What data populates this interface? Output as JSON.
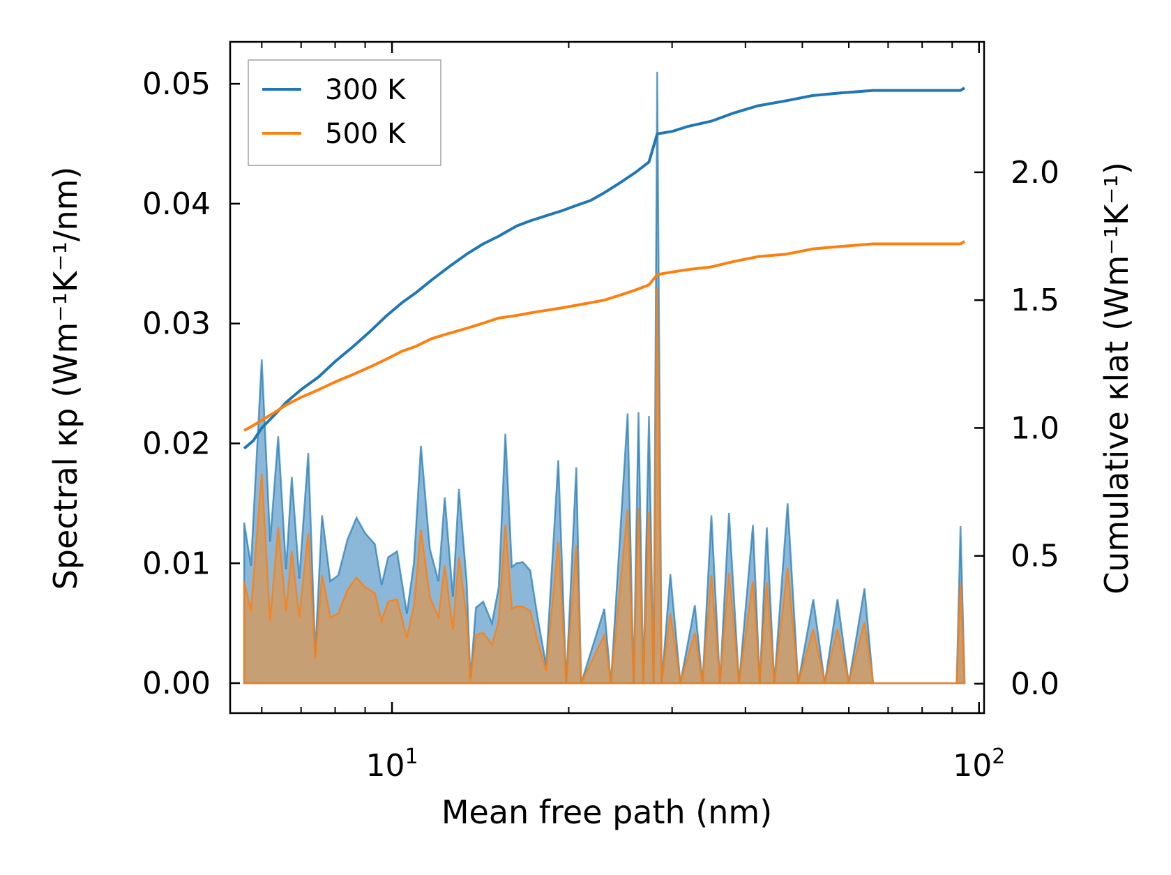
{
  "chart_data": {
    "type": "line",
    "x_scale": "log",
    "xlabel": "Mean free path (nm)",
    "ylabel_left": "Spectral κp (Wm⁻¹K⁻¹/nm)",
    "ylabel_right": "Cumulative κlat (Wm⁻¹K⁻¹)",
    "xlim": [
      5.3,
      102
    ],
    "ylim_left": [
      -0.0025,
      0.0535
    ],
    "ylim_right": [
      -0.115,
      2.51
    ],
    "x_ticks": [
      {
        "value": 10,
        "mantissa": "10",
        "exp": "1"
      },
      {
        "value": 100,
        "mantissa": "10",
        "exp": "2"
      }
    ],
    "y_ticks_left": [
      "0.00",
      "0.01",
      "0.02",
      "0.03",
      "0.04",
      "0.05"
    ],
    "y_ticks_right": [
      "0.0",
      "0.5",
      "1.0",
      "1.5",
      "2.0"
    ],
    "legend": {
      "position": "top-left",
      "entries": [
        "300 K",
        "500 K"
      ]
    },
    "colors": {
      "300 K": "#1f77b4",
      "500 K": "#ff7f0e",
      "fill_300": "#7eb0d5",
      "fill_500": "#d19a62"
    },
    "series": [
      {
        "name": "300 K",
        "spectral": [
          [
            5.6,
            0.0134
          ],
          [
            5.75,
            0.0098
          ],
          [
            6.0,
            0.027
          ],
          [
            6.2,
            0.0118
          ],
          [
            6.4,
            0.0206
          ],
          [
            6.6,
            0.0095
          ],
          [
            6.75,
            0.0172
          ],
          [
            6.95,
            0.0087
          ],
          [
            7.2,
            0.0192
          ],
          [
            7.4,
            0.0025
          ],
          [
            7.6,
            0.014
          ],
          [
            7.85,
            0.0085
          ],
          [
            8.1,
            0.009
          ],
          [
            8.4,
            0.012
          ],
          [
            8.7,
            0.0138
          ],
          [
            9.0,
            0.0125
          ],
          [
            9.35,
            0.0116
          ],
          [
            9.6,
            0.0082
          ],
          [
            9.85,
            0.0105
          ],
          [
            10.2,
            0.011
          ],
          [
            10.6,
            0.0058
          ],
          [
            10.9,
            0.0101
          ],
          [
            11.2,
            0.0198
          ],
          [
            11.6,
            0.0112
          ],
          [
            12.0,
            0.0085
          ],
          [
            12.3,
            0.0155
          ],
          [
            12.7,
            0.0072
          ],
          [
            13.0,
            0.0162
          ],
          [
            13.4,
            0.0085
          ],
          [
            13.6,
            0.0004
          ],
          [
            13.9,
            0.0063
          ],
          [
            14.3,
            0.0068
          ],
          [
            14.8,
            0.005
          ],
          [
            15.2,
            0.008
          ],
          [
            15.6,
            0.0208
          ],
          [
            16.0,
            0.0097
          ],
          [
            16.3,
            0.01
          ],
          [
            16.7,
            0.0101
          ],
          [
            17.2,
            0.0094
          ],
          [
            17.7,
            0.0055
          ],
          [
            18.3,
            0.0015
          ],
          [
            19.2,
            0.0186
          ],
          [
            19.8,
            0.0
          ],
          [
            20.6,
            0.018
          ],
          [
            21.0,
            0.0
          ],
          [
            23.0,
            0.0062
          ],
          [
            23.6,
            0.0
          ],
          [
            25.2,
            0.0225
          ],
          [
            25.8,
            0.0
          ],
          [
            26.3,
            0.0226
          ],
          [
            26.8,
            0.0
          ],
          [
            27.4,
            0.0223
          ],
          [
            27.9,
            0.0
          ],
          [
            28.3,
            0.051
          ],
          [
            28.8,
            0.0
          ],
          [
            29.8,
            0.0091
          ],
          [
            31.0,
            0.0
          ],
          [
            32.8,
            0.0065
          ],
          [
            33.8,
            0.0
          ],
          [
            35.0,
            0.014
          ],
          [
            36.2,
            0.0
          ],
          [
            37.5,
            0.0142
          ],
          [
            39.0,
            0.0
          ],
          [
            41.2,
            0.0132
          ],
          [
            42.3,
            0.0
          ],
          [
            43.5,
            0.013
          ],
          [
            44.8,
            0.0
          ],
          [
            47.2,
            0.015
          ],
          [
            49.2,
            0.0
          ],
          [
            52.2,
            0.007
          ],
          [
            54.6,
            0.0
          ],
          [
            57.4,
            0.007
          ],
          [
            60.0,
            0.0
          ],
          [
            63.8,
            0.0079
          ],
          [
            66.0,
            0.0
          ],
          [
            91.6,
            0.0
          ],
          [
            93.0,
            0.0131
          ],
          [
            94.5,
            0.0
          ]
        ],
        "cumulative": [
          [
            5.6,
            0.92
          ],
          [
            5.8,
            0.95
          ],
          [
            6.0,
            1.0
          ],
          [
            6.3,
            1.05
          ],
          [
            6.6,
            1.1
          ],
          [
            7.0,
            1.15
          ],
          [
            7.5,
            1.2
          ],
          [
            8.0,
            1.26
          ],
          [
            8.6,
            1.32
          ],
          [
            9.2,
            1.38
          ],
          [
            9.8,
            1.44
          ],
          [
            10.4,
            1.49
          ],
          [
            11.0,
            1.53
          ],
          [
            11.7,
            1.58
          ],
          [
            12.5,
            1.63
          ],
          [
            13.4,
            1.68
          ],
          [
            14.3,
            1.72
          ],
          [
            15.2,
            1.75
          ],
          [
            16.3,
            1.79
          ],
          [
            17.2,
            1.81
          ],
          [
            18.3,
            1.83
          ],
          [
            19.5,
            1.85
          ],
          [
            20.6,
            1.87
          ],
          [
            21.8,
            1.89
          ],
          [
            23.0,
            1.92
          ],
          [
            24.5,
            1.96
          ],
          [
            26.0,
            2.0
          ],
          [
            27.4,
            2.04
          ],
          [
            28.3,
            2.15
          ],
          [
            30.0,
            2.16
          ],
          [
            32.0,
            2.18
          ],
          [
            35.0,
            2.2
          ],
          [
            38.0,
            2.23
          ],
          [
            42.0,
            2.26
          ],
          [
            47.0,
            2.28
          ],
          [
            52.0,
            2.3
          ],
          [
            58.0,
            2.31
          ],
          [
            66.0,
            2.32
          ],
          [
            75.0,
            2.32
          ],
          [
            85.0,
            2.32
          ],
          [
            93.0,
            2.32
          ],
          [
            94.5,
            2.33
          ]
        ]
      },
      {
        "name": "500 K",
        "spectral": [
          [
            5.6,
            0.0085
          ],
          [
            5.75,
            0.006
          ],
          [
            6.0,
            0.0175
          ],
          [
            6.2,
            0.0052
          ],
          [
            6.4,
            0.013
          ],
          [
            6.6,
            0.006
          ],
          [
            6.75,
            0.011
          ],
          [
            6.95,
            0.0055
          ],
          [
            7.2,
            0.0125
          ],
          [
            7.4,
            0.002
          ],
          [
            7.6,
            0.009
          ],
          [
            7.85,
            0.0055
          ],
          [
            8.1,
            0.0058
          ],
          [
            8.4,
            0.0078
          ],
          [
            8.7,
            0.0088
          ],
          [
            9.0,
            0.008
          ],
          [
            9.35,
            0.0075
          ],
          [
            9.6,
            0.0052
          ],
          [
            9.85,
            0.0068
          ],
          [
            10.2,
            0.007
          ],
          [
            10.6,
            0.0038
          ],
          [
            10.9,
            0.0065
          ],
          [
            11.2,
            0.0128
          ],
          [
            11.6,
            0.0072
          ],
          [
            12.0,
            0.0055
          ],
          [
            12.3,
            0.0098
          ],
          [
            12.7,
            0.0045
          ],
          [
            13.0,
            0.0105
          ],
          [
            13.4,
            0.0055
          ],
          [
            13.6,
            0.0002
          ],
          [
            13.9,
            0.004
          ],
          [
            14.3,
            0.0042
          ],
          [
            14.8,
            0.0032
          ],
          [
            15.2,
            0.0052
          ],
          [
            15.6,
            0.0132
          ],
          [
            16.0,
            0.0062
          ],
          [
            16.3,
            0.0064
          ],
          [
            16.7,
            0.0064
          ],
          [
            17.2,
            0.006
          ],
          [
            17.7,
            0.0035
          ],
          [
            18.3,
            0.001
          ],
          [
            19.2,
            0.0118
          ],
          [
            19.8,
            0.0
          ],
          [
            20.6,
            0.0115
          ],
          [
            21.0,
            0.0
          ],
          [
            23.0,
            0.004
          ],
          [
            23.6,
            0.0
          ],
          [
            25.2,
            0.0145
          ],
          [
            25.8,
            0.0
          ],
          [
            26.3,
            0.0146
          ],
          [
            26.8,
            0.0
          ],
          [
            27.4,
            0.0143
          ],
          [
            27.9,
            0.0
          ],
          [
            28.3,
            0.033
          ],
          [
            28.8,
            0.0
          ],
          [
            29.8,
            0.0058
          ],
          [
            31.0,
            0.0
          ],
          [
            32.8,
            0.0042
          ],
          [
            33.8,
            0.0
          ],
          [
            35.0,
            0.009
          ],
          [
            36.2,
            0.0
          ],
          [
            37.5,
            0.0092
          ],
          [
            39.0,
            0.0
          ],
          [
            41.2,
            0.0085
          ],
          [
            42.3,
            0.0
          ],
          [
            43.5,
            0.0084
          ],
          [
            44.8,
            0.0
          ],
          [
            47.2,
            0.0096
          ],
          [
            49.2,
            0.0
          ],
          [
            52.2,
            0.0045
          ],
          [
            54.6,
            0.0
          ],
          [
            57.4,
            0.0045
          ],
          [
            60.0,
            0.0
          ],
          [
            63.8,
            0.0051
          ],
          [
            66.0,
            0.0
          ],
          [
            91.6,
            0.0
          ],
          [
            93.0,
            0.0084
          ],
          [
            94.5,
            0.0
          ]
        ],
        "cumulative": [
          [
            5.6,
            0.99
          ],
          [
            5.8,
            1.01
          ],
          [
            6.0,
            1.03
          ],
          [
            6.3,
            1.06
          ],
          [
            6.6,
            1.09
          ],
          [
            7.0,
            1.12
          ],
          [
            7.5,
            1.15
          ],
          [
            8.0,
            1.18
          ],
          [
            8.6,
            1.21
          ],
          [
            9.2,
            1.24
          ],
          [
            9.8,
            1.27
          ],
          [
            10.4,
            1.3
          ],
          [
            11.0,
            1.32
          ],
          [
            11.7,
            1.35
          ],
          [
            12.5,
            1.37
          ],
          [
            13.4,
            1.39
          ],
          [
            14.3,
            1.41
          ],
          [
            15.2,
            1.43
          ],
          [
            16.3,
            1.44
          ],
          [
            17.2,
            1.45
          ],
          [
            18.3,
            1.46
          ],
          [
            19.5,
            1.47
          ],
          [
            20.6,
            1.48
          ],
          [
            21.8,
            1.49
          ],
          [
            23.0,
            1.5
          ],
          [
            24.5,
            1.52
          ],
          [
            26.0,
            1.54
          ],
          [
            27.4,
            1.56
          ],
          [
            28.3,
            1.6
          ],
          [
            30.0,
            1.61
          ],
          [
            32.0,
            1.62
          ],
          [
            35.0,
            1.63
          ],
          [
            38.0,
            1.65
          ],
          [
            42.0,
            1.67
          ],
          [
            47.0,
            1.68
          ],
          [
            52.0,
            1.7
          ],
          [
            58.0,
            1.71
          ],
          [
            66.0,
            1.72
          ],
          [
            75.0,
            1.72
          ],
          [
            85.0,
            1.72
          ],
          [
            93.0,
            1.72
          ],
          [
            94.5,
            1.73
          ]
        ]
      }
    ]
  }
}
